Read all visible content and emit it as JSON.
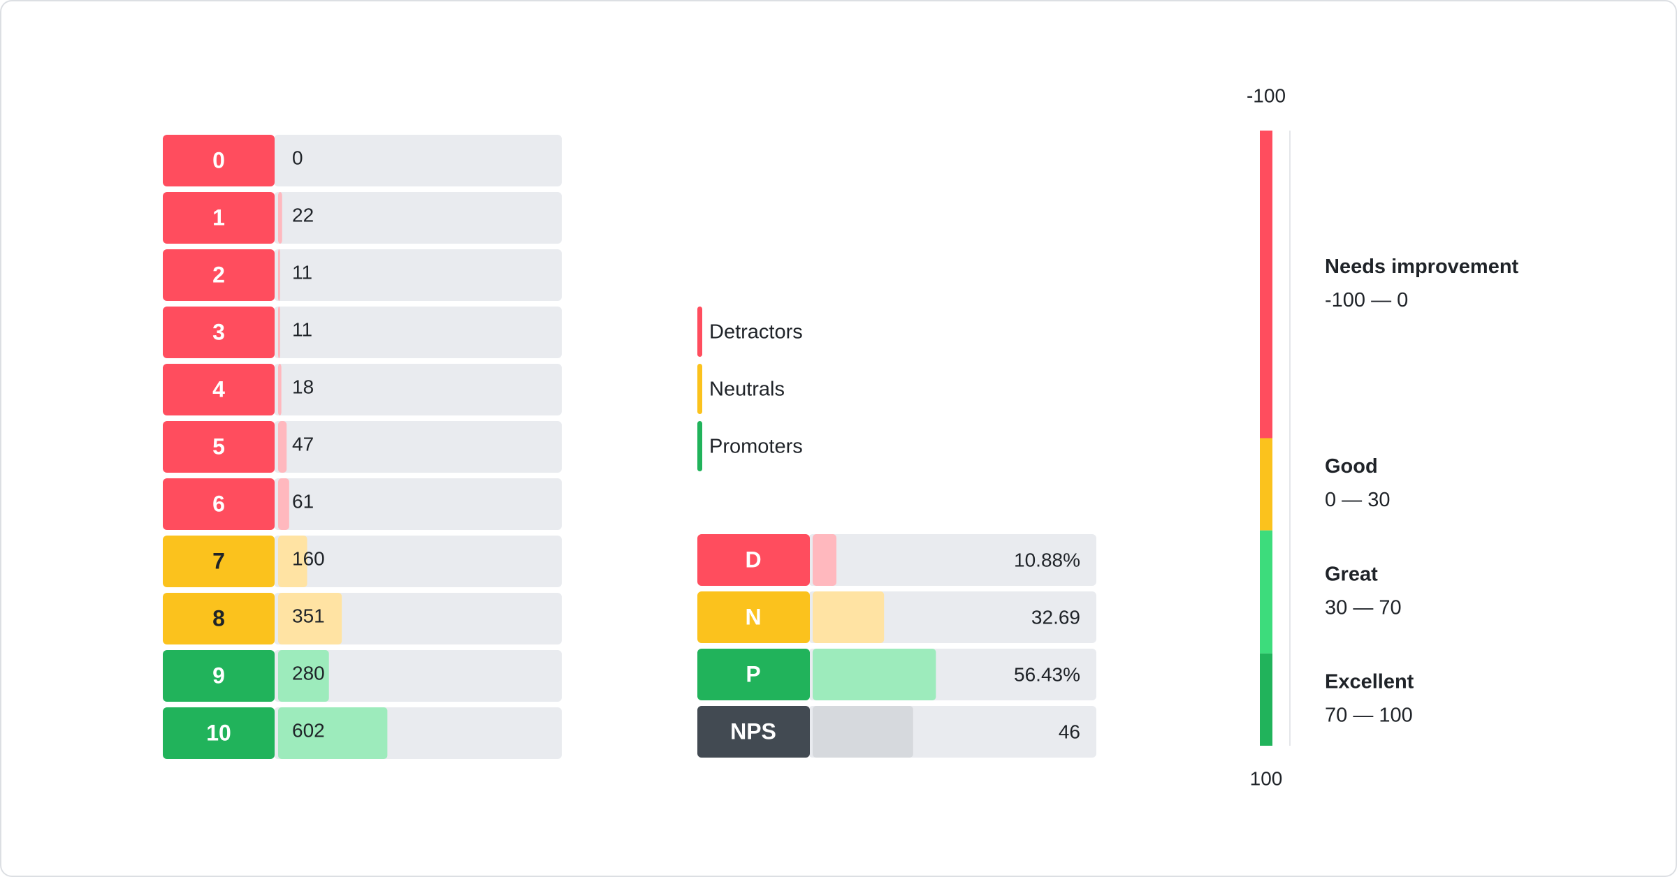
{
  "scores": {
    "labels": [
      "0",
      "1",
      "2",
      "3",
      "4",
      "5",
      "6",
      "7",
      "8",
      "9",
      "10"
    ],
    "values": [
      0,
      22,
      11,
      11,
      18,
      47,
      61,
      160,
      351,
      280,
      602
    ],
    "colors": [
      "#ff4d5e",
      "#ff4d5e",
      "#ff4d5e",
      "#ff4d5e",
      "#ff4d5e",
      "#ff4d5e",
      "#ff4d5e",
      "#fbc21d",
      "#fbc21d",
      "#21b35b",
      "#21b35b"
    ],
    "bar_colors": [
      "#ffb8be",
      "#ffb8be",
      "#ffb8be",
      "#ffb8be",
      "#ffb8be",
      "#ffb8be",
      "#ffb8be",
      "#ffe3a3",
      "#ffe3a3",
      "#9debbc",
      "#9debbc"
    ],
    "text_colors": [
      "#ffffff",
      "#ffffff",
      "#ffffff",
      "#ffffff",
      "#ffffff",
      "#ffffff",
      "#ffffff",
      "#1f2328",
      "#1f2328",
      "#ffffff",
      "#ffffff"
    ]
  },
  "legend": [
    {
      "name": "Detractors",
      "color": "#ff4d5e"
    },
    {
      "name": "Neutrals",
      "color": "#fbc21d"
    },
    {
      "name": "Promoters",
      "color": "#21b35b"
    }
  ],
  "summary": {
    "labels": [
      "D",
      "N",
      "P",
      "NPS"
    ],
    "values": [
      10.88,
      32.69,
      56.43,
      46
    ],
    "value_labels": [
      "10.88%",
      "32.69",
      "56.43%",
      "46"
    ],
    "colors": [
      "#ff4d5e",
      "#fbc21d",
      "#21b35b",
      "#424a52"
    ],
    "bar_colors": [
      "#ffb8be",
      "#ffe3a3",
      "#9debbc",
      "#d6d9dd"
    ]
  },
  "scale": {
    "lim": [
      -100,
      100
    ],
    "segments": [
      {
        "name": "Needs improvement",
        "range": "-100 — 0",
        "lim": [
          -100,
          0
        ],
        "color": "#ff4d5e"
      },
      {
        "name": "Good",
        "range": "0 — 30",
        "lim": [
          0,
          30
        ],
        "color": "#fbc21d"
      },
      {
        "name": "Great",
        "range": "30 — 70",
        "lim": [
          30,
          70
        ],
        "color": "#3ddc7c"
      },
      {
        "name": "Excellent",
        "range": "70 — 100",
        "lim": [
          70,
          100
        ],
        "color": "#21b35b"
      }
    ]
  }
}
